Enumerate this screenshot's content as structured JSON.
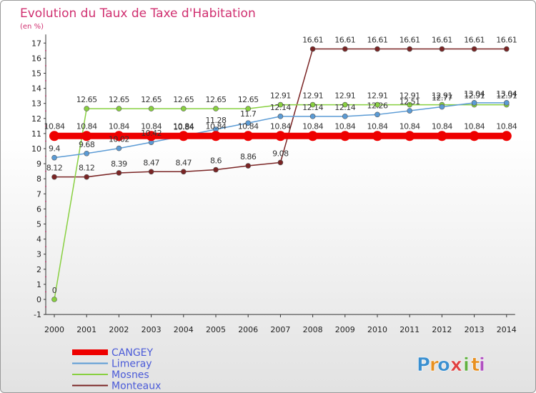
{
  "chart_data": {
    "type": "line",
    "title": "Evolution du Taux de Taxe d'Habitation",
    "subtitle": "(en %)",
    "xlabel": "",
    "ylabel": "",
    "ylim": [
      -1,
      17
    ],
    "categories": [
      "2000",
      "2001",
      "2002",
      "2003",
      "2004",
      "2005",
      "2006",
      "2007",
      "2008",
      "2009",
      "2010",
      "2011",
      "2012",
      "2013",
      "2014"
    ],
    "y_ticks": [
      "-1",
      "0",
      "1",
      "2",
      "3",
      "4",
      "5",
      "6",
      "7",
      "8",
      "9",
      "10",
      "11",
      "12",
      "13",
      "14",
      "15",
      "16",
      "17"
    ],
    "series": [
      {
        "name": "CANGEY",
        "color": "#ee0000",
        "values": [
          10.84,
          10.84,
          10.84,
          10.84,
          10.84,
          10.84,
          10.84,
          10.84,
          10.84,
          10.84,
          10.84,
          10.84,
          10.84,
          10.84,
          10.84
        ],
        "labels": [
          "10.84",
          "10.84",
          "10.84",
          "10.84",
          "10.84",
          "10.84",
          "10.84",
          "10.84",
          "10.84",
          "10.84",
          "10.84",
          "10.84",
          "10.84",
          "10.84",
          "10.84"
        ]
      },
      {
        "name": "Limeray",
        "color": "#5b9bd5",
        "values": [
          9.4,
          9.68,
          10.02,
          10.42,
          10.84,
          11.28,
          11.7,
          12.14,
          12.14,
          12.14,
          12.26,
          12.51,
          12.77,
          13.04,
          13.04
        ],
        "labels": [
          "9.4",
          "9.68",
          "10.02",
          "10.42",
          "10.84",
          "11.28",
          "11.7",
          "12.14",
          "12.14",
          "12.14",
          "12.26",
          "12.51",
          "12.77",
          "13.04",
          "13.04"
        ]
      },
      {
        "name": "Mosnes",
        "color": "#88d040",
        "values": [
          0,
          12.65,
          12.65,
          12.65,
          12.65,
          12.65,
          12.65,
          12.91,
          12.91,
          12.91,
          12.91,
          12.91,
          12.91,
          12.91,
          12.91
        ],
        "labels": [
          "0",
          "12.65",
          "12.65",
          "12.65",
          "12.65",
          "12.65",
          "12.65",
          "12.91",
          "12.91",
          "12.91",
          "12.91",
          "12.91",
          "12.91",
          "12.91",
          "12.91"
        ]
      },
      {
        "name": "Monteaux",
        "color": "#7a2424",
        "values": [
          8.12,
          8.12,
          8.39,
          8.47,
          8.47,
          8.6,
          8.86,
          9.08,
          16.61,
          16.61,
          16.61,
          16.61,
          16.61,
          16.61,
          16.61
        ],
        "labels": [
          "8.12",
          "8.12",
          "8.39",
          "8.47",
          "8.47",
          "8.6",
          "8.86",
          "9.08",
          "16.61",
          "16.61",
          "16.61",
          "16.61",
          "16.61",
          "16.61",
          "16.61"
        ]
      }
    ],
    "legend_position": "bottom-left",
    "grid": false
  },
  "logo": {
    "text": "Proxiti",
    "letters": [
      "P",
      "r",
      "o",
      "x",
      "i",
      "t",
      "i"
    ],
    "colors": [
      "#3a8fd0",
      "#e89020",
      "#3a8fd0",
      "#e04040",
      "#60b040",
      "#e89020",
      "#b050c0"
    ]
  }
}
